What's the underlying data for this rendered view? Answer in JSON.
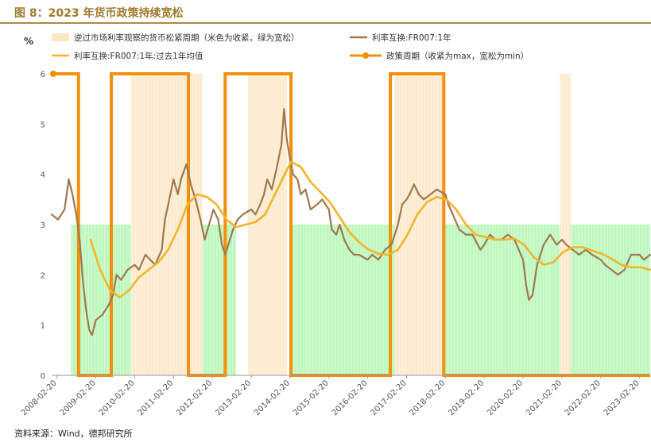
{
  "figure": {
    "title": "图 8：2023 年货币政策持续宽松",
    "source": "资料来源：Wind，德邦研究所"
  },
  "chart_data": {
    "type": "line",
    "unit_label": "%",
    "ylim": [
      0,
      6
    ],
    "yticks": [
      0,
      1,
      2,
      3,
      4,
      5,
      6
    ],
    "x_tick_labels": [
      "2008-02-20",
      "2009-02-20",
      "2010-02-20",
      "2011-02-20",
      "2012-02-20",
      "2013-02-20",
      "2014-02-20",
      "2015-02-20",
      "2016-02-20",
      "2017-02-20",
      "2018-02-20",
      "2019-02-20",
      "2020-02-20",
      "2021-02-20",
      "2022-02-20",
      "2023-02-20"
    ],
    "x_range": [
      "2008-01-01",
      "2023-05-31"
    ],
    "grid": false,
    "colors": {
      "tight_band": "#fbe7c6",
      "loose_band": "#b3f7b3",
      "rate": "#a0784e",
      "avg": "#f2b52a",
      "policy": "#f2900d"
    },
    "legend": [
      {
        "key": "tight_band",
        "label": "逆过市场利率观察的货币松紧周期（米色为收紧，绿为宽松）"
      },
      {
        "key": "rate",
        "label": "利率互换:FR007:1年"
      },
      {
        "key": "avg",
        "label": "利率互换:FR007:1年:过去1年均值"
      },
      {
        "key": "policy",
        "label": "政策周期（收紧为max，宽松为min）"
      }
    ],
    "tight_periods": [
      [
        "2010-01-15",
        "2011-11-20"
      ],
      [
        "2013-01-20",
        "2014-01-20"
      ],
      [
        "2016-11-01",
        "2018-01-31"
      ],
      [
        "2021-02-01",
        "2021-05-15"
      ]
    ],
    "loose_periods": [
      [
        "2008-07-01",
        "2010-01-15"
      ],
      [
        "2011-11-20",
        "2012-10-01"
      ],
      [
        "2014-03-15",
        "2016-10-31"
      ],
      [
        "2018-02-01",
        "2021-01-31"
      ],
      [
        "2021-05-15",
        "2023-05-31"
      ]
    ],
    "band_levels": {
      "tight": 6,
      "loose": 3
    },
    "policy_cycle": {
      "max": 6,
      "min": 0,
      "points": [
        [
          "2008-01-01",
          6
        ],
        [
          "2008-09-10",
          6
        ],
        [
          "2008-09-10",
          0
        ],
        [
          "2009-07-15",
          0
        ],
        [
          "2009-07-15",
          6
        ],
        [
          "2011-07-10",
          6
        ],
        [
          "2011-07-10",
          0
        ],
        [
          "2012-06-20",
          0
        ],
        [
          "2012-06-20",
          6
        ],
        [
          "2014-03-01",
          6
        ],
        [
          "2014-03-01",
          0
        ],
        [
          "2016-09-20",
          0
        ],
        [
          "2016-09-20",
          6
        ],
        [
          "2018-02-05",
          6
        ],
        [
          "2018-02-05",
          0
        ],
        [
          "2023-05-31",
          0
        ]
      ]
    },
    "series": [
      {
        "name": "利率互换:FR007:1年",
        "key": "rate",
        "points": [
          [
            "2008-01-01",
            3.2
          ],
          [
            "2008-03-01",
            3.1
          ],
          [
            "2008-05-01",
            3.3
          ],
          [
            "2008-06-10",
            3.9
          ],
          [
            "2008-07-15",
            3.6
          ],
          [
            "2008-08-20",
            3.2
          ],
          [
            "2008-09-20",
            2.7
          ],
          [
            "2008-10-20",
            1.9
          ],
          [
            "2008-11-20",
            1.3
          ],
          [
            "2008-12-20",
            0.9
          ],
          [
            "2009-01-15",
            0.8
          ],
          [
            "2009-02-20",
            1.1
          ],
          [
            "2009-04-20",
            1.2
          ],
          [
            "2009-06-20",
            1.4
          ],
          [
            "2009-08-01",
            1.6
          ],
          [
            "2009-09-01",
            2.0
          ],
          [
            "2009-10-15",
            1.9
          ],
          [
            "2009-12-15",
            2.1
          ],
          [
            "2010-02-20",
            2.2
          ],
          [
            "2010-04-01",
            2.1
          ],
          [
            "2010-06-01",
            2.4
          ],
          [
            "2010-07-15",
            2.3
          ],
          [
            "2010-09-01",
            2.2
          ],
          [
            "2010-11-01",
            2.5
          ],
          [
            "2010-12-01",
            3.1
          ],
          [
            "2011-01-01",
            3.4
          ],
          [
            "2011-02-20",
            3.9
          ],
          [
            "2011-04-01",
            3.6
          ],
          [
            "2011-05-01",
            3.9
          ],
          [
            "2011-06-20",
            4.2
          ],
          [
            "2011-08-01",
            3.8
          ],
          [
            "2011-09-15",
            3.5
          ],
          [
            "2011-11-01",
            3.1
          ],
          [
            "2011-12-10",
            2.7
          ],
          [
            "2012-01-20",
            3.0
          ],
          [
            "2012-03-01",
            3.3
          ],
          [
            "2012-04-15",
            3.1
          ],
          [
            "2012-05-20",
            2.6
          ],
          [
            "2012-06-20",
            2.4
          ],
          [
            "2012-07-20",
            2.6
          ],
          [
            "2012-09-01",
            2.9
          ],
          [
            "2012-10-15",
            3.1
          ],
          [
            "2012-12-01",
            3.2
          ],
          [
            "2013-02-20",
            3.3
          ],
          [
            "2013-04-01",
            3.2
          ],
          [
            "2013-05-15",
            3.4
          ],
          [
            "2013-06-20",
            3.6
          ],
          [
            "2013-07-20",
            3.9
          ],
          [
            "2013-09-01",
            3.7
          ],
          [
            "2013-10-15",
            4.1
          ],
          [
            "2013-12-01",
            4.6
          ],
          [
            "2013-12-25",
            5.3
          ],
          [
            "2014-01-20",
            4.7
          ],
          [
            "2014-02-20",
            4.3
          ],
          [
            "2014-03-20",
            4.0
          ],
          [
            "2014-05-01",
            3.9
          ],
          [
            "2014-06-01",
            3.6
          ],
          [
            "2014-07-15",
            3.7
          ],
          [
            "2014-09-01",
            3.3
          ],
          [
            "2014-11-01",
            3.4
          ],
          [
            "2014-12-20",
            3.5
          ],
          [
            "2015-02-20",
            3.3
          ],
          [
            "2015-03-20",
            2.9
          ],
          [
            "2015-05-01",
            2.8
          ],
          [
            "2015-06-01",
            3.0
          ],
          [
            "2015-07-15",
            2.7
          ],
          [
            "2015-09-01",
            2.5
          ],
          [
            "2015-10-15",
            2.4
          ],
          [
            "2015-12-01",
            2.4
          ],
          [
            "2016-02-20",
            2.3
          ],
          [
            "2016-04-01",
            2.4
          ],
          [
            "2016-06-01",
            2.3
          ],
          [
            "2016-08-01",
            2.5
          ],
          [
            "2016-10-01",
            2.6
          ],
          [
            "2016-12-01",
            3.0
          ],
          [
            "2017-01-10",
            3.4
          ],
          [
            "2017-02-20",
            3.5
          ],
          [
            "2017-03-20",
            3.6
          ],
          [
            "2017-05-01",
            3.8
          ],
          [
            "2017-06-15",
            3.6
          ],
          [
            "2017-08-01",
            3.5
          ],
          [
            "2017-10-01",
            3.6
          ],
          [
            "2017-12-01",
            3.7
          ],
          [
            "2018-02-20",
            3.6
          ],
          [
            "2018-03-20",
            3.4
          ],
          [
            "2018-05-01",
            3.2
          ],
          [
            "2018-07-01",
            2.9
          ],
          [
            "2018-09-01",
            2.8
          ],
          [
            "2018-11-01",
            2.8
          ],
          [
            "2019-01-15",
            2.5
          ],
          [
            "2019-02-20",
            2.6
          ],
          [
            "2019-04-15",
            2.8
          ],
          [
            "2019-06-01",
            2.7
          ],
          [
            "2019-08-01",
            2.7
          ],
          [
            "2019-10-01",
            2.8
          ],
          [
            "2019-12-01",
            2.7
          ],
          [
            "2020-02-20",
            2.3
          ],
          [
            "2020-03-20",
            1.8
          ],
          [
            "2020-04-15",
            1.5
          ],
          [
            "2020-05-20",
            1.6
          ],
          [
            "2020-07-01",
            2.2
          ],
          [
            "2020-09-01",
            2.6
          ],
          [
            "2020-11-01",
            2.8
          ],
          [
            "2021-01-01",
            2.6
          ],
          [
            "2021-02-20",
            2.7
          ],
          [
            "2021-04-01",
            2.6
          ],
          [
            "2021-06-01",
            2.5
          ],
          [
            "2021-08-01",
            2.4
          ],
          [
            "2021-10-01",
            2.5
          ],
          [
            "2021-12-01",
            2.4
          ],
          [
            "2022-02-20",
            2.3
          ],
          [
            "2022-04-01",
            2.2
          ],
          [
            "2022-06-01",
            2.1
          ],
          [
            "2022-08-01",
            2.0
          ],
          [
            "2022-10-01",
            2.1
          ],
          [
            "2022-12-01",
            2.4
          ],
          [
            "2023-02-20",
            2.4
          ],
          [
            "2023-04-01",
            2.3
          ],
          [
            "2023-05-31",
            2.4
          ]
        ]
      },
      {
        "name": "利率互换:FR007:1年:过去1年均值",
        "key": "avg",
        "points": [
          [
            "2009-01-01",
            2.7
          ],
          [
            "2009-04-01",
            2.1
          ],
          [
            "2009-07-01",
            1.7
          ],
          [
            "2009-10-01",
            1.55
          ],
          [
            "2010-01-01",
            1.7
          ],
          [
            "2010-04-01",
            1.95
          ],
          [
            "2010-07-01",
            2.1
          ],
          [
            "2010-10-01",
            2.25
          ],
          [
            "2011-01-01",
            2.5
          ],
          [
            "2011-04-01",
            2.9
          ],
          [
            "2011-07-01",
            3.4
          ],
          [
            "2011-10-01",
            3.6
          ],
          [
            "2012-01-01",
            3.55
          ],
          [
            "2012-04-01",
            3.4
          ],
          [
            "2012-07-01",
            3.1
          ],
          [
            "2012-10-01",
            2.95
          ],
          [
            "2013-01-01",
            3.0
          ],
          [
            "2013-04-01",
            3.05
          ],
          [
            "2013-07-01",
            3.2
          ],
          [
            "2013-10-01",
            3.6
          ],
          [
            "2014-01-01",
            4.0
          ],
          [
            "2014-03-01",
            4.25
          ],
          [
            "2014-06-01",
            4.15
          ],
          [
            "2014-09-01",
            3.85
          ],
          [
            "2014-12-01",
            3.65
          ],
          [
            "2015-03-01",
            3.45
          ],
          [
            "2015-06-01",
            3.15
          ],
          [
            "2015-09-01",
            2.85
          ],
          [
            "2015-12-01",
            2.65
          ],
          [
            "2016-03-01",
            2.5
          ],
          [
            "2016-06-01",
            2.42
          ],
          [
            "2016-09-01",
            2.4
          ],
          [
            "2016-12-01",
            2.5
          ],
          [
            "2017-03-01",
            2.8
          ],
          [
            "2017-06-01",
            3.2
          ],
          [
            "2017-09-01",
            3.45
          ],
          [
            "2017-12-01",
            3.55
          ],
          [
            "2018-03-01",
            3.5
          ],
          [
            "2018-06-01",
            3.3
          ],
          [
            "2018-09-01",
            3.0
          ],
          [
            "2018-12-01",
            2.8
          ],
          [
            "2019-03-01",
            2.75
          ],
          [
            "2019-06-01",
            2.7
          ],
          [
            "2019-09-01",
            2.7
          ],
          [
            "2019-12-01",
            2.72
          ],
          [
            "2020-03-01",
            2.6
          ],
          [
            "2020-06-01",
            2.35
          ],
          [
            "2020-09-01",
            2.2
          ],
          [
            "2020-12-01",
            2.25
          ],
          [
            "2021-03-01",
            2.45
          ],
          [
            "2021-06-01",
            2.55
          ],
          [
            "2021-09-01",
            2.55
          ],
          [
            "2021-12-01",
            2.48
          ],
          [
            "2022-03-01",
            2.42
          ],
          [
            "2022-06-01",
            2.32
          ],
          [
            "2022-09-01",
            2.2
          ],
          [
            "2022-12-01",
            2.15
          ],
          [
            "2023-03-01",
            2.15
          ],
          [
            "2023-05-31",
            2.1
          ]
        ]
      }
    ]
  }
}
